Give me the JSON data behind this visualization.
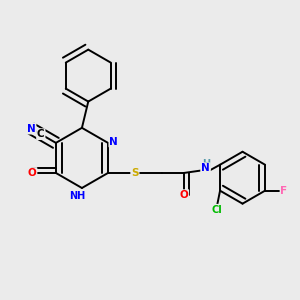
{
  "bg_color": "#ebebeb",
  "bond_color": "#000000",
  "atom_colors": {
    "N": "#0000ff",
    "O": "#ff0000",
    "S": "#ccaa00",
    "Cl": "#00bb00",
    "F": "#ff69b4",
    "C": "#000000",
    "H": "#5599aa"
  },
  "lw": 1.4
}
